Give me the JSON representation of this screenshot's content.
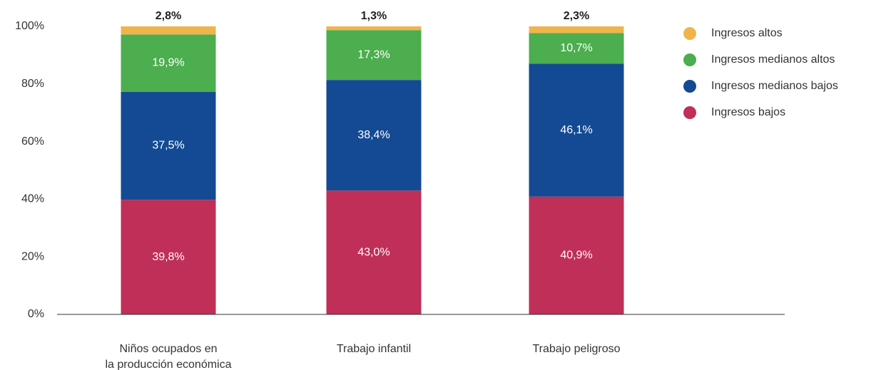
{
  "chart_data": {
    "type": "stacked_bar",
    "categories": [
      "Niños ocupados en\nla producción económica",
      "Trabajo infantil",
      "Trabajo peligroso"
    ],
    "series": [
      {
        "name": "Ingresos bajos",
        "color": "#bf2f57",
        "values": [
          39.8,
          43.0,
          40.9
        ],
        "value_labels": [
          "39,8%",
          "43,0%",
          "40,9%"
        ]
      },
      {
        "name": "Ingresos medianos bajos",
        "color": "#134a93",
        "values": [
          37.5,
          38.4,
          46.1
        ],
        "value_labels": [
          "37,5%",
          "38,4%",
          "46,1%"
        ]
      },
      {
        "name": "Ingresos medianos altos",
        "color": "#4cae4f",
        "values": [
          19.9,
          17.3,
          10.7
        ],
        "value_labels": [
          "19,9%",
          "17,3%",
          "10,7%"
        ]
      },
      {
        "name": "Ingresos altos",
        "color": "#f0b44b",
        "values": [
          2.8,
          1.3,
          2.3
        ],
        "value_labels": [
          "2,8%",
          "1,3%",
          "2,3%"
        ]
      }
    ],
    "ylim": [
      0,
      100
    ],
    "yticks": [
      {
        "value": 0,
        "label": "0%"
      },
      {
        "value": 20,
        "label": "20%"
      },
      {
        "value": 40,
        "label": "40%"
      },
      {
        "value": 60,
        "label": "60%"
      },
      {
        "value": 80,
        "label": "80%"
      },
      {
        "value": 100,
        "label": "100%"
      }
    ],
    "grid": false,
    "legend": "right"
  }
}
